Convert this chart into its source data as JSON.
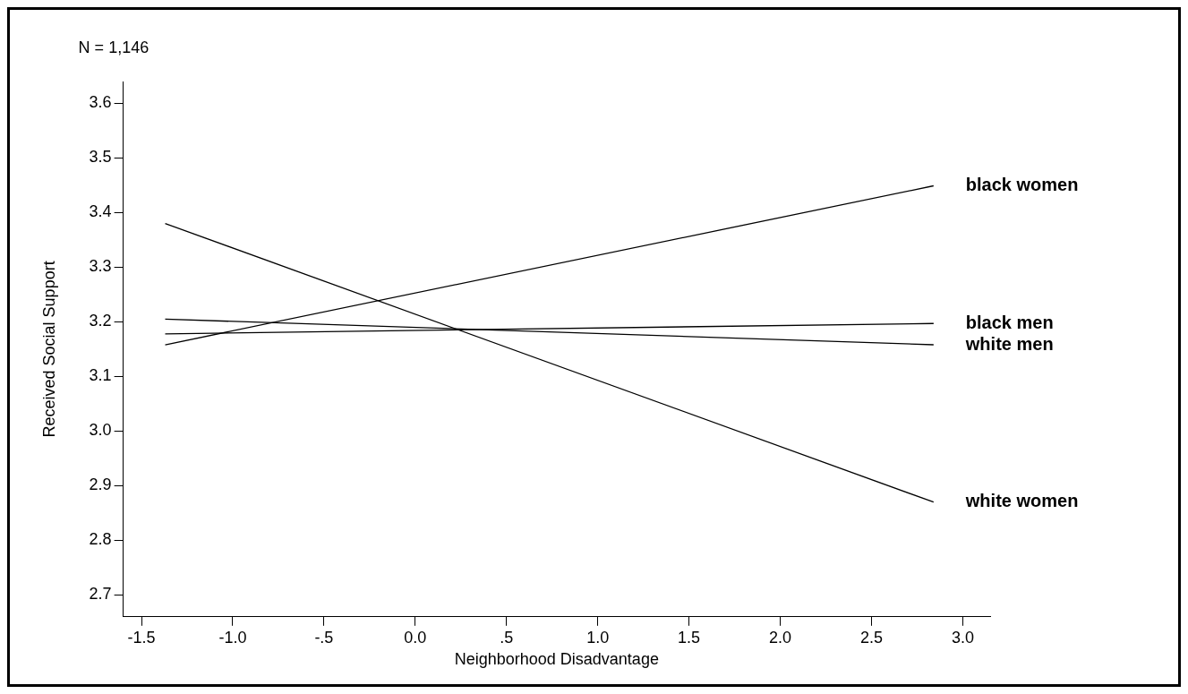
{
  "chart_data": {
    "type": "line",
    "xlabel": "Neighborhood Disadvantage",
    "ylabel": "Received Social Support",
    "annotations": [
      "N = 1,146"
    ],
    "x": [
      -1.37,
      2.84
    ],
    "series": [
      {
        "name": "black women",
        "color": "#000000",
        "values": [
          3.158,
          3.449
        ]
      },
      {
        "name": "black men",
        "color": "#000000",
        "values": [
          3.178,
          3.197
        ]
      },
      {
        "name": "white men",
        "color": "#000000",
        "values": [
          3.205,
          3.158
        ]
      },
      {
        "name": "white women",
        "color": "#000000",
        "values": [
          3.38,
          2.87
        ]
      }
    ],
    "xlim": [
      -1.6,
      3.15
    ],
    "ylim": [
      2.66,
      3.64
    ],
    "xticks": [
      {
        "value": -1.5,
        "label": "-1.5"
      },
      {
        "value": -1,
        "label": "-1.0"
      },
      {
        "value": -0.5,
        "label": "-.5"
      },
      {
        "value": 0,
        "label": "0.0"
      },
      {
        "value": 0.5,
        "label": ".5"
      },
      {
        "value": 1,
        "label": "1.0"
      },
      {
        "value": 1.5,
        "label": "1.5"
      },
      {
        "value": 2,
        "label": "2.0"
      },
      {
        "value": 2.5,
        "label": "2.5"
      },
      {
        "value": 3,
        "label": "3.0"
      }
    ],
    "yticks": [
      {
        "value": 2.7,
        "label": "2.7"
      },
      {
        "value": 2.8,
        "label": "2.8"
      },
      {
        "value": 2.9,
        "label": "2.9"
      },
      {
        "value": 3,
        "label": "3.0"
      },
      {
        "value": 3.1,
        "label": "3.1"
      },
      {
        "value": 3.2,
        "label": "3.2"
      },
      {
        "value": 3.3,
        "label": "3.3"
      },
      {
        "value": 3.4,
        "label": "3.4"
      },
      {
        "value": 3.5,
        "label": "3.5"
      },
      {
        "value": 3.6,
        "label": "3.6"
      }
    ],
    "grid": false,
    "legend": false,
    "marker": "none",
    "line_style": "solid"
  }
}
